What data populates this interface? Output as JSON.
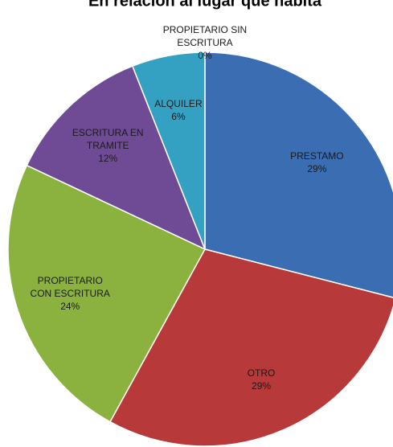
{
  "chart_data": {
    "type": "pie",
    "title": "En relación al lugar que habita",
    "categories": [
      "PRESTAMO",
      "OTRO",
      "PROPIETARIO CON ESCRITURA",
      "ESCRITURA EN TRAMITE",
      "ALQUILER",
      "PROPIETARIO SIN ESCRITURA"
    ],
    "values": [
      29,
      29,
      24,
      12,
      6,
      0
    ],
    "value_labels": [
      "29%",
      "29%",
      "24%",
      "12%",
      "6%",
      "0%"
    ],
    "colors": [
      "#3b6db3",
      "#b7393a",
      "#8bb23f",
      "#704b95",
      "#35a1c2",
      "#e07b2a"
    ]
  }
}
